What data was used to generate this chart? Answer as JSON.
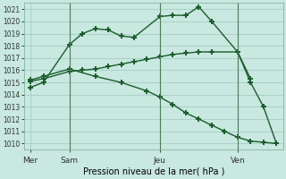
{
  "bg_color": "#c8e8e0",
  "grid_color": "#a0c8bc",
  "line_color": "#1a5c2a",
  "title": "Pression niveau de la mer( hPa )",
  "ylim": [
    1009.5,
    1021.5
  ],
  "yticks": [
    1010,
    1011,
    1012,
    1013,
    1014,
    1015,
    1016,
    1017,
    1018,
    1019,
    1020,
    1021
  ],
  "xtick_labels": [
    "Mer",
    "Sam",
    "Jeu",
    "Ven"
  ],
  "xtick_pos": [
    0,
    3,
    10,
    16
  ],
  "xlim": [
    -0.5,
    19.5
  ],
  "line1_x": [
    0,
    1,
    3,
    4,
    5,
    6,
    7,
    8,
    10,
    11,
    12,
    13,
    14,
    16,
    17,
    18,
    19
  ],
  "line1_y": [
    1014.6,
    1015.0,
    1018.1,
    1019.0,
    1019.4,
    1019.3,
    1018.8,
    1018.7,
    1020.4,
    1020.5,
    1020.5,
    1021.2,
    1020.0,
    1017.5,
    1015.0,
    1013.0,
    1010.0
  ],
  "line2_x": [
    0,
    1,
    3,
    4,
    5,
    6,
    7,
    8,
    9,
    10,
    11,
    12,
    13,
    14,
    16,
    17
  ],
  "line2_y": [
    1015.1,
    1015.3,
    1015.9,
    1016.0,
    1016.1,
    1016.3,
    1016.5,
    1016.7,
    1016.9,
    1017.1,
    1017.3,
    1017.4,
    1017.5,
    1017.5,
    1017.5,
    1015.3
  ],
  "line3_x": [
    0,
    1,
    3,
    5,
    7,
    9,
    10,
    11,
    12,
    13,
    14,
    15,
    16,
    17,
    18,
    19
  ],
  "line3_y": [
    1015.2,
    1015.5,
    1016.1,
    1015.5,
    1015.0,
    1014.3,
    1013.8,
    1013.2,
    1012.5,
    1012.0,
    1011.5,
    1011.0,
    1010.5,
    1010.2,
    1010.1,
    1010.0
  ],
  "vline_positions": [
    3,
    10,
    16
  ],
  "marker": "+"
}
